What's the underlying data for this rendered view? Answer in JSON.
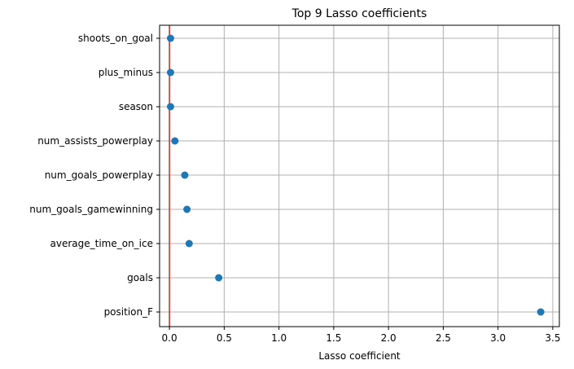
{
  "chart_data": {
    "type": "scatter",
    "title": "Top 9 Lasso coefficients",
    "xlabel": "Lasso coefficient",
    "ylabel": "",
    "xlim": [
      -0.09,
      3.56
    ],
    "xticks": [
      0.0,
      0.5,
      1.0,
      1.5,
      2.0,
      2.5,
      3.0,
      3.5
    ],
    "xtick_labels": [
      "0.0",
      "0.5",
      "1.0",
      "1.5",
      "2.0",
      "2.5",
      "3.0",
      "3.5"
    ],
    "grid": true,
    "reference_line_x": 0,
    "colors": {
      "points": "#1f77b4",
      "reference_line": "#d62728",
      "grid": "#b0b0b0"
    },
    "categories": [
      "shoots_on_goal",
      "plus_minus",
      "season",
      "num_assists_powerplay",
      "num_goals_powerplay",
      "num_goals_gamewinning",
      "average_time_on_ice",
      "goals",
      "position_F"
    ],
    "values": [
      0.01,
      0.01,
      0.01,
      0.05,
      0.14,
      0.16,
      0.18,
      0.45,
      3.39
    ]
  }
}
